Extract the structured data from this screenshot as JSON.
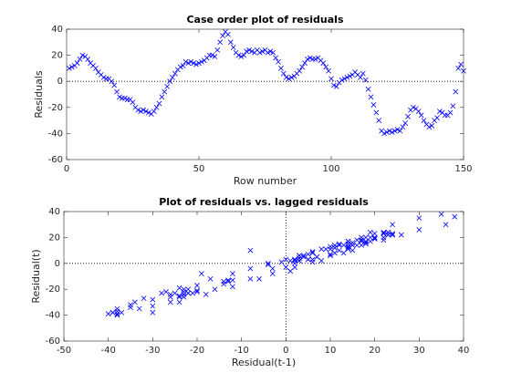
{
  "chart_data": [
    {
      "type": "scatter",
      "marker": "x",
      "color": "#0000ff",
      "title": "Case order plot of residuals",
      "xlabel": "Row number",
      "ylabel": "Residuals",
      "xlim": [
        0,
        150
      ],
      "xticks": [
        0,
        50,
        100,
        150
      ],
      "ylim": [
        -60,
        40
      ],
      "yticks": [
        -60,
        -40,
        -20,
        0,
        20,
        40
      ],
      "grid": false,
      "hline": 0,
      "x": [
        1,
        2,
        3,
        4,
        5,
        6,
        7,
        8,
        9,
        10,
        11,
        12,
        13,
        14,
        15,
        16,
        17,
        18,
        19,
        20,
        21,
        22,
        23,
        24,
        25,
        26,
        27,
        28,
        29,
        30,
        31,
        32,
        33,
        34,
        35,
        36,
        37,
        38,
        39,
        40,
        41,
        42,
        43,
        44,
        45,
        46,
        47,
        48,
        49,
        50,
        51,
        52,
        53,
        54,
        55,
        56,
        57,
        58,
        59,
        60,
        61,
        62,
        63,
        64,
        65,
        66,
        67,
        68,
        69,
        70,
        71,
        72,
        73,
        74,
        75,
        76,
        77,
        78,
        79,
        80,
        81,
        82,
        83,
        84,
        85,
        86,
        87,
        88,
        89,
        90,
        91,
        92,
        93,
        94,
        95,
        96,
        97,
        98,
        99,
        100,
        101,
        102,
        103,
        104,
        105,
        106,
        107,
        108,
        109,
        110,
        111,
        112,
        113,
        114,
        115,
        116,
        117,
        118,
        119,
        120,
        121,
        122,
        123,
        124,
        125,
        126,
        127,
        128,
        129,
        130,
        131,
        132,
        133,
        134,
        135,
        136,
        137,
        138,
        139,
        140,
        141,
        142,
        143,
        144,
        145,
        146,
        147,
        148,
        149,
        150
      ],
      "values": [
        10,
        11,
        12,
        14,
        17,
        20,
        19,
        17,
        14,
        12,
        10,
        7,
        5,
        3,
        2,
        2,
        0,
        -3,
        -8,
        -12,
        -13,
        -13,
        -14,
        -14,
        -16,
        -20,
        -22,
        -23,
        -22,
        -23,
        -24,
        -25,
        -23,
        -20,
        -17,
        -12,
        -8,
        -4,
        0,
        3,
        6,
        9,
        11,
        12,
        15,
        14,
        15,
        14,
        13,
        14,
        15,
        16,
        18,
        20,
        20,
        19,
        24,
        30,
        35,
        38,
        36,
        30,
        26,
        22,
        20,
        19,
        20,
        23,
        24,
        23,
        22,
        24,
        22,
        23,
        24,
        22,
        23,
        22,
        18,
        15,
        10,
        6,
        3,
        2,
        3,
        4,
        6,
        8,
        11,
        14,
        17,
        18,
        17,
        17,
        18,
        16,
        14,
        11,
        8,
        2,
        -3,
        -4,
        -1,
        1,
        2,
        3,
        4,
        5,
        7,
        5,
        3,
        6,
        1,
        -6,
        -12,
        -18,
        -24,
        -30,
        -38,
        -40,
        -39,
        -38,
        -39,
        -38,
        -37,
        -38,
        -35,
        -32,
        -27,
        -22,
        -20,
        -21,
        -23,
        -26,
        -30,
        -33,
        -35,
        -34,
        -30,
        -28,
        -23,
        -24,
        -26,
        -26,
        -24,
        -19,
        -8,
        10,
        13,
        8
      ]
    },
    {
      "type": "scatter",
      "marker": "x",
      "color": "#0000ff",
      "title": "Plot of residuals vs. lagged residuals",
      "xlabel": "Residual(t-1)",
      "ylabel": "Residual(t)",
      "xlim": [
        -50,
        40
      ],
      "xticks": [
        -50,
        -40,
        -30,
        -20,
        -10,
        0,
        10,
        20,
        30,
        40
      ],
      "ylim": [
        -60,
        40
      ],
      "yticks": [
        -60,
        -40,
        -20,
        0,
        20,
        40
      ],
      "grid": false,
      "hline": 0,
      "vline": 0,
      "x": [
        10,
        11,
        12,
        14,
        17,
        20,
        19,
        17,
        14,
        12,
        10,
        7,
        5,
        3,
        2,
        2,
        0,
        -3,
        -8,
        -12,
        -13,
        -13,
        -14,
        -14,
        -16,
        -20,
        -22,
        -23,
        -22,
        -23,
        -24,
        -25,
        -23,
        -20,
        -17,
        -12,
        -8,
        -4,
        0,
        3,
        6,
        9,
        11,
        12,
        15,
        14,
        15,
        14,
        13,
        14,
        15,
        16,
        18,
        20,
        20,
        19,
        24,
        30,
        35,
        38,
        36,
        30,
        26,
        22,
        20,
        19,
        20,
        23,
        24,
        23,
        22,
        24,
        22,
        23,
        24,
        22,
        23,
        22,
        18,
        15,
        10,
        6,
        3,
        2,
        3,
        4,
        6,
        8,
        11,
        14,
        17,
        18,
        17,
        17,
        18,
        16,
        14,
        11,
        8,
        2,
        -3,
        -4,
        -1,
        1,
        2,
        3,
        4,
        5,
        7,
        5,
        3,
        6,
        1,
        -6,
        -12,
        -18,
        -24,
        -30,
        -38,
        -40,
        -39,
        -38,
        -39,
        -38,
        -37,
        -38,
        -35,
        -32,
        -27,
        -22,
        -20,
        -21,
        -23,
        -26,
        -30,
        -33,
        -35,
        -34,
        -30,
        -28,
        -23,
        -24,
        -26,
        -26,
        -24,
        -19,
        -8,
        10,
        13
      ],
      "values": [
        11,
        12,
        14,
        17,
        20,
        19,
        17,
        14,
        12,
        10,
        7,
        5,
        3,
        2,
        2,
        0,
        -3,
        -8,
        -12,
        -13,
        -13,
        -14,
        -14,
        -16,
        -20,
        -22,
        -23,
        -22,
        -23,
        -24,
        -25,
        -23,
        -20,
        -17,
        -12,
        -8,
        -4,
        0,
        3,
        6,
        9,
        11,
        12,
        15,
        14,
        15,
        14,
        13,
        14,
        15,
        16,
        18,
        20,
        20,
        19,
        24,
        30,
        35,
        38,
        36,
        30,
        26,
        22,
        20,
        19,
        20,
        23,
        24,
        23,
        22,
        24,
        22,
        23,
        24,
        22,
        23,
        22,
        18,
        15,
        10,
        6,
        3,
        2,
        3,
        4,
        6,
        8,
        11,
        14,
        17,
        18,
        17,
        17,
        18,
        16,
        14,
        11,
        8,
        2,
        -3,
        -4,
        -1,
        1,
        2,
        3,
        4,
        5,
        7,
        5,
        3,
        6,
        1,
        -6,
        -12,
        -18,
        -24,
        -30,
        -38,
        -40,
        -39,
        -38,
        -39,
        -38,
        -37,
        -38,
        -35,
        -32,
        -27,
        -22,
        -20,
        -21,
        -23,
        -26,
        -30,
        -33,
        -35,
        -34,
        -30,
        -28,
        -23,
        -24,
        -26,
        -26,
        -24,
        -19,
        -8,
        10,
        13,
        8
      ]
    }
  ]
}
